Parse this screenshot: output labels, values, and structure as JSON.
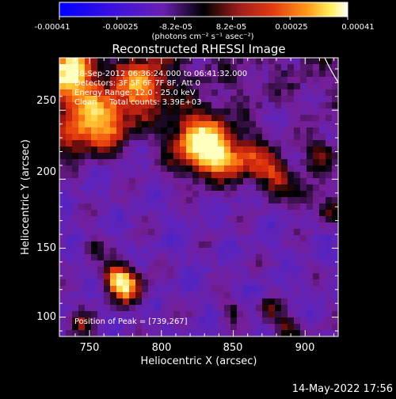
{
  "colorbar": {
    "tick_labels": [
      "-0.00041",
      "-0.00025",
      "-8.2e-05",
      "8.2e-05",
      "0.00025",
      "0.00041"
    ],
    "unit_label": "(photons cm⁻² s⁻¹ asec⁻²)"
  },
  "chart_data": {
    "type": "heatmap",
    "title": "Reconstructed RHESSI Image",
    "xlabel": "Heliocentric X (arcsec)",
    "ylabel": "Heliocentric Y (arcsec)",
    "xlim": [
      729,
      923
    ],
    "ylim": [
      86,
      288
    ],
    "xticks": [
      750,
      800,
      850,
      900
    ],
    "yticks": [
      100,
      150,
      200,
      250
    ],
    "color_range": [
      -0.00041,
      0.00041
    ],
    "colormap": "blue-purple-black-red-orange-yellow-white",
    "peak": [
      739,
      267
    ],
    "annotations": [
      "28-Sep-2012 06:36:24.000 to 06:41:32.000",
      "Detectors: 3F 5F 6F 7F 8F, Att 0",
      "Energy Range: 12.0 - 25.0 keV",
      "Clean     Total counts: 3.39E+03",
      "Position of Peak = [739,267]"
    ]
  },
  "footer": {
    "timestamp": "14-May-2022 17:56"
  }
}
